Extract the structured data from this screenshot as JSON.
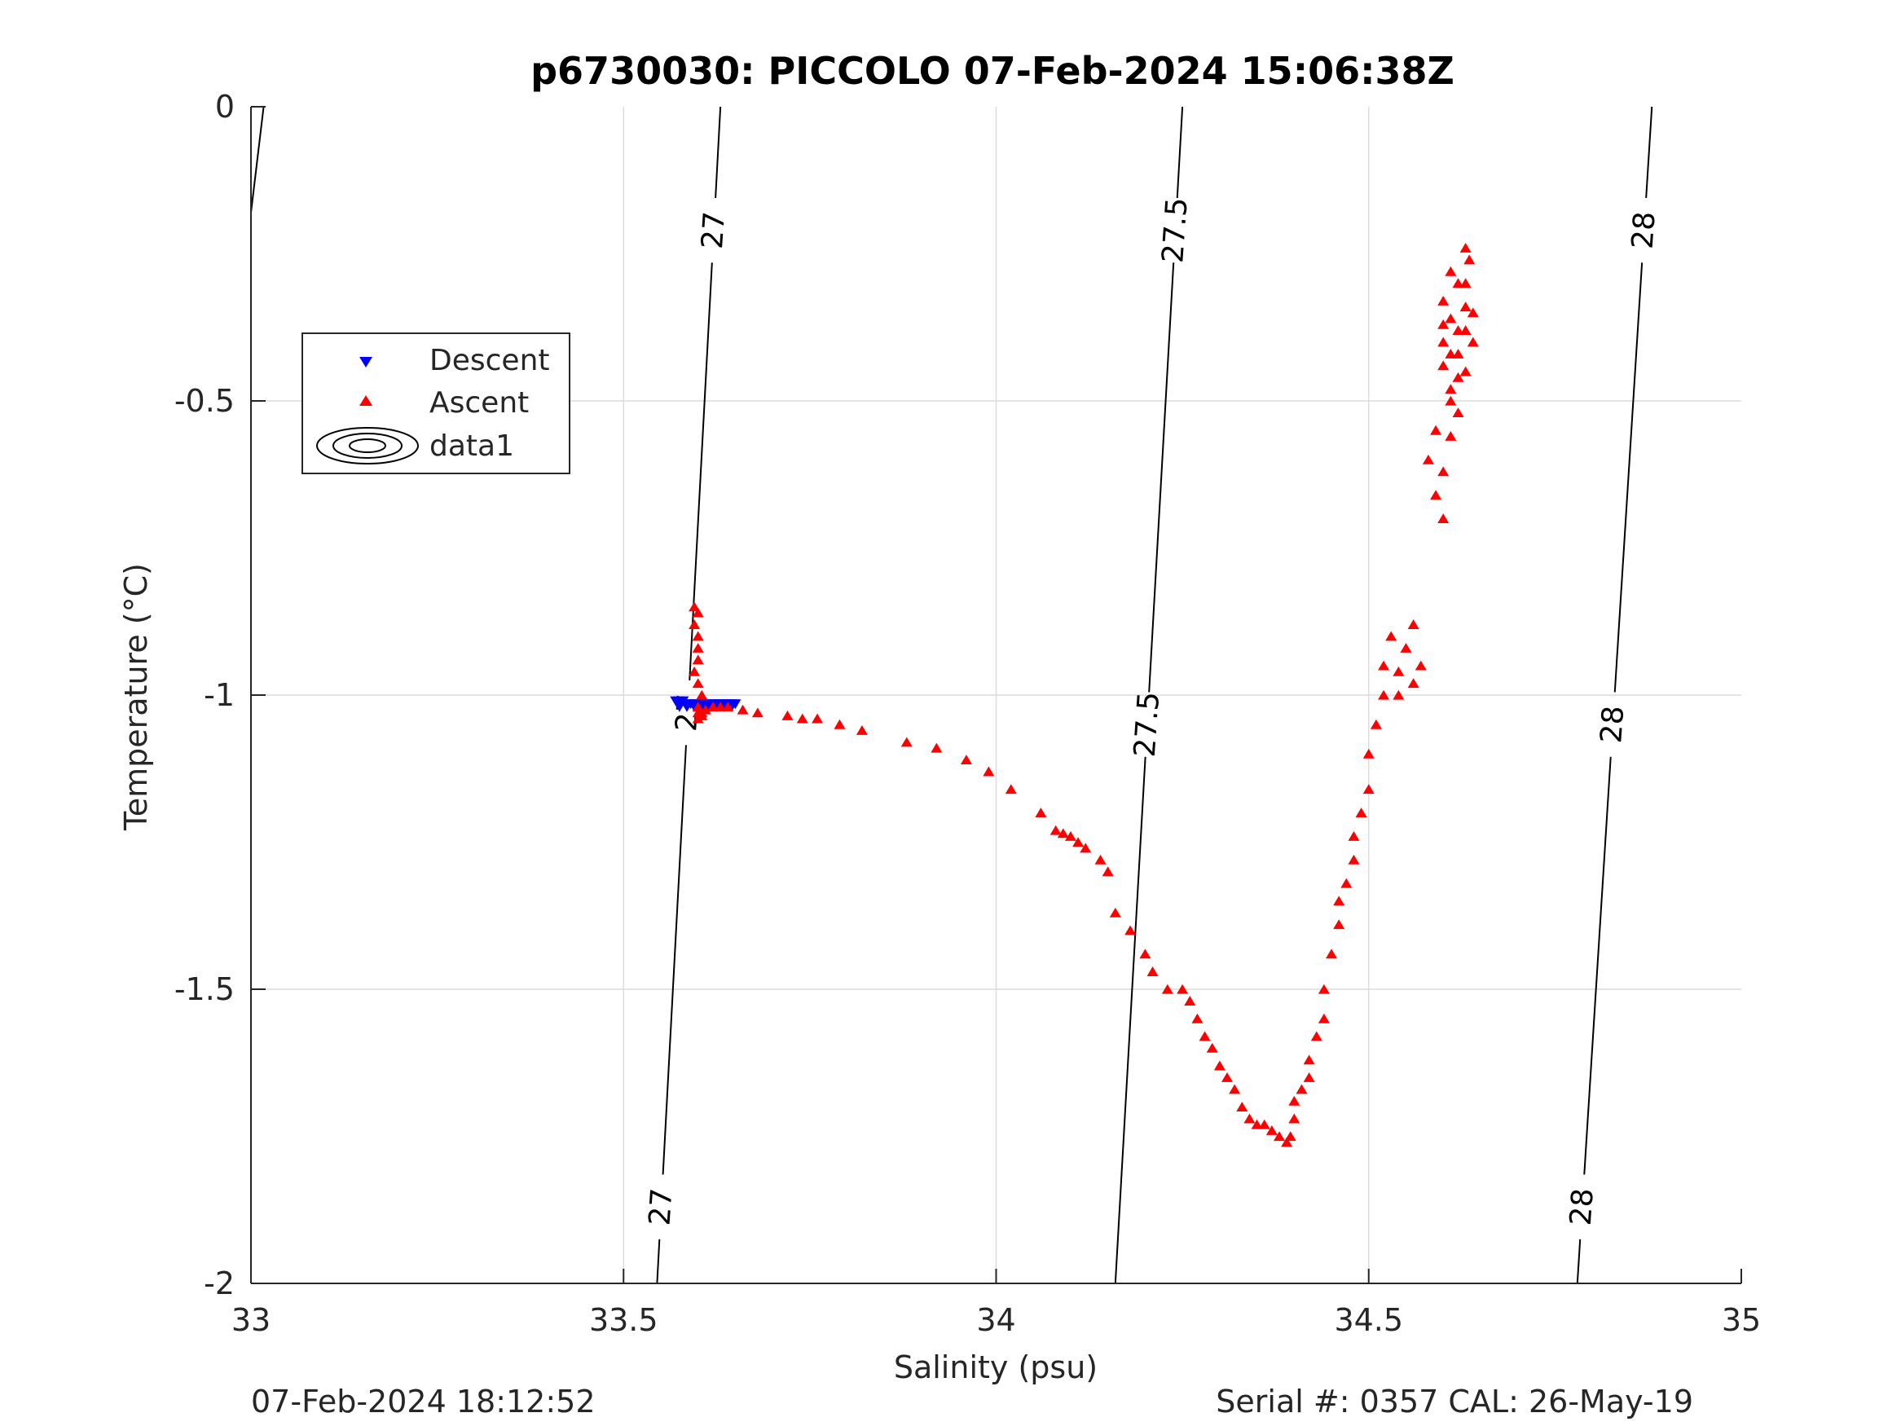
{
  "chart_data": {
    "type": "scatter",
    "title": "p6730030: PICCOLO 07-Feb-2024 15:06:38Z",
    "xlabel": "Salinity (psu)",
    "ylabel": "Temperature (°C)",
    "xlim": [
      33,
      35
    ],
    "ylim": [
      -2,
      0
    ],
    "xticks": [
      33,
      33.5,
      34,
      34.5,
      35
    ],
    "xtick_labels": [
      "33",
      "33.5",
      "34",
      "34.5",
      "35"
    ],
    "yticks": [
      -2,
      -1.5,
      -1,
      -0.5,
      0
    ],
    "ytick_labels": [
      "-2",
      "-1.5",
      "-1",
      "-0.5",
      "0"
    ],
    "grid": true,
    "legend": {
      "placement": "upper-left",
      "entries": [
        "Descent",
        "Ascent",
        "data1"
      ]
    },
    "footer_left": "07-Feb-2024 18:12:52",
    "footer_right": "Serial #: 0357  CAL: 26-May-19",
    "series": [
      {
        "name": "Descent",
        "color": "#0000ff",
        "marker": "triangle-down",
        "x": [
          33.57,
          33.575,
          33.58,
          33.585,
          33.59,
          33.595,
          33.6,
          33.605,
          33.61,
          33.615,
          33.62,
          33.625,
          33.63,
          33.635,
          33.64,
          33.645,
          33.65,
          33.575,
          33.585,
          33.595,
          33.605,
          33.615,
          33.625,
          33.635,
          33.645
        ],
        "y": [
          -1.01,
          -1.01,
          -1.01,
          -1.015,
          -1.015,
          -1.015,
          -1.015,
          -1.015,
          -1.015,
          -1.015,
          -1.015,
          -1.015,
          -1.015,
          -1.015,
          -1.015,
          -1.015,
          -1.015,
          -1.02,
          -1.02,
          -1.02,
          -1.02,
          -1.02,
          -1.02,
          -1.02,
          -1.02
        ]
      },
      {
        "name": "Ascent",
        "color": "#ff0000",
        "marker": "triangle-up",
        "x": [
          33.595,
          33.6,
          33.595,
          33.6,
          33.6,
          33.6,
          33.595,
          33.6,
          33.605,
          33.6,
          33.6,
          33.605,
          33.6,
          33.605,
          33.61,
          33.62,
          33.63,
          33.64,
          33.66,
          33.68,
          33.72,
          33.74,
          33.76,
          33.79,
          33.82,
          33.88,
          33.92,
          33.96,
          33.99,
          34.02,
          34.06,
          34.08,
          34.09,
          34.1,
          34.11,
          34.12,
          34.14,
          34.15,
          34.16,
          34.18,
          34.2,
          34.21,
          34.23,
          34.25,
          34.26,
          34.27,
          34.28,
          34.29,
          34.3,
          34.31,
          34.32,
          34.33,
          34.34,
          34.35,
          34.36,
          34.37,
          34.38,
          34.39,
          34.395,
          34.4,
          34.4,
          34.41,
          34.42,
          34.42,
          34.43,
          34.44,
          34.44,
          34.45,
          34.46,
          34.46,
          34.47,
          34.48,
          34.48,
          34.49,
          34.5,
          34.5,
          34.51,
          34.52,
          34.52,
          34.53,
          34.54,
          34.54,
          34.55,
          34.56,
          34.56,
          34.57,
          34.58,
          34.59,
          34.59,
          34.6,
          34.6,
          34.61,
          34.61,
          34.62,
          34.62,
          34.63,
          34.63,
          34.635,
          34.63,
          34.62,
          34.61,
          34.6,
          34.6,
          34.61,
          34.62,
          34.63,
          34.64,
          34.64,
          34.63,
          34.62,
          34.61,
          34.6,
          34.6,
          34.61
        ],
        "y": [
          -0.85,
          -0.86,
          -0.88,
          -0.9,
          -0.92,
          -0.94,
          -0.96,
          -0.98,
          -1.0,
          -1.02,
          -1.03,
          -1.035,
          -1.04,
          -1.03,
          -1.025,
          -1.02,
          -1.02,
          -1.02,
          -1.025,
          -1.03,
          -1.035,
          -1.04,
          -1.04,
          -1.05,
          -1.06,
          -1.08,
          -1.09,
          -1.11,
          -1.13,
          -1.16,
          -1.2,
          -1.23,
          -1.235,
          -1.24,
          -1.25,
          -1.26,
          -1.28,
          -1.3,
          -1.37,
          -1.4,
          -1.44,
          -1.47,
          -1.5,
          -1.5,
          -1.52,
          -1.55,
          -1.58,
          -1.6,
          -1.63,
          -1.65,
          -1.67,
          -1.7,
          -1.72,
          -1.73,
          -1.73,
          -1.74,
          -1.75,
          -1.76,
          -1.75,
          -1.72,
          -1.69,
          -1.67,
          -1.65,
          -1.62,
          -1.58,
          -1.55,
          -1.5,
          -1.44,
          -1.39,
          -1.35,
          -1.32,
          -1.28,
          -1.24,
          -1.2,
          -1.16,
          -1.1,
          -1.05,
          -1.0,
          -0.95,
          -0.9,
          -0.96,
          -1.0,
          -0.92,
          -0.88,
          -0.98,
          -0.95,
          -0.6,
          -0.55,
          -0.66,
          -0.7,
          -0.62,
          -0.56,
          -0.5,
          -0.46,
          -0.42,
          -0.38,
          -0.34,
          -0.26,
          -0.24,
          -0.3,
          -0.36,
          -0.4,
          -0.44,
          -0.48,
          -0.52,
          -0.45,
          -0.4,
          -0.35,
          -0.3,
          -0.38,
          -0.42,
          -0.37,
          -0.33,
          -0.28
        ]
      }
    ],
    "isopycnals": [
      {
        "label": "27",
        "x_top": 33.63,
        "x_bottom": 33.545,
        "top_label_y": -0.21,
        "bottom_label_y": -1.87,
        "mid_label_y": -1.03
      },
      {
        "label": "27.5",
        "x_top": 34.25,
        "x_bottom": 34.16,
        "top_label_y": -0.21,
        "bottom_label_y": null,
        "mid_label_y": -1.05
      },
      {
        "label": "28",
        "x_top": 34.88,
        "x_bottom": 34.78,
        "top_label_y": -0.21,
        "bottom_label_y": -1.87,
        "mid_label_y": -1.05
      }
    ]
  }
}
